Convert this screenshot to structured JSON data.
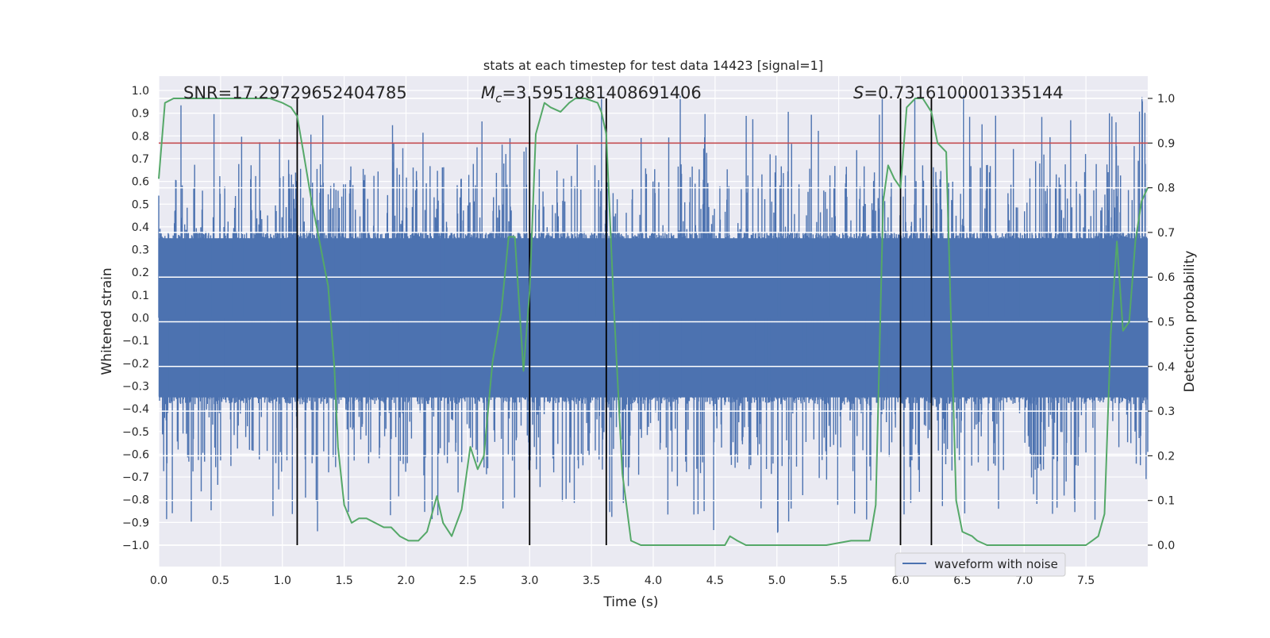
{
  "chart_data": {
    "type": "line",
    "title": "stats at each timestep for test data 14423 [signal=1]",
    "xlabel": "Time (s)",
    "ylabel_left": "Whitened strain",
    "ylabel_right": "Detection probability",
    "xlim": [
      0,
      8
    ],
    "ylim_left": [
      -1.05,
      1.05
    ],
    "ylim_right": [
      -0.05,
      1.04
    ],
    "x_ticks": [
      "0.0",
      "0.5",
      "1.0",
      "1.5",
      "2.0",
      "2.5",
      "3.0",
      "3.5",
      "4.0",
      "4.5",
      "5.0",
      "5.5",
      "6.0",
      "6.5",
      "7.0",
      "7.5"
    ],
    "y_ticks_left": [
      "1.0",
      "0.9",
      "0.8",
      "0.7",
      "0.6",
      "0.5",
      "0.4",
      "0.3",
      "0.2",
      "0.1",
      "0.0",
      "-0.1",
      "-0.2",
      "-0.3",
      "-0.4",
      "-0.5",
      "-0.6",
      "-0.7",
      "-0.8",
      "-0.9",
      "-1.0"
    ],
    "y_ticks_right": [
      "1.0",
      "0.9",
      "0.8",
      "0.7",
      "0.6",
      "0.5",
      "0.4",
      "0.3",
      "0.2",
      "0.1",
      "0.0"
    ],
    "annotations": {
      "snr": "SNR=17.29729652404785",
      "mc_prefix": "M",
      "mc_sub": "c",
      "mc_value": "=3.5951881408691406",
      "s_prefix": "S",
      "s_value": "=0.7316100001335144"
    },
    "legend": {
      "entries": [
        "waveform with noise"
      ],
      "placement": "lower-right"
    },
    "threshold": 0.9,
    "marker_times": [
      1.12,
      3.0,
      3.62,
      6.0,
      6.25
    ],
    "colors": {
      "waveform": "#4c72b0",
      "probability": "#55a868",
      "threshold": "#c44e52",
      "markers": "#000000",
      "background": "#eaeaf2",
      "grid": "#ffffff"
    },
    "series": [
      {
        "name": "waveform with noise",
        "kind": "noise",
        "x_range": [
          0,
          8
        ],
        "typical_amplitude": 0.38,
        "max_peak": 0.98,
        "min_trough": -1.0
      },
      {
        "axis": "right",
        "x": [
          0.0,
          0.05,
          0.12,
          0.25,
          0.5,
          0.75,
          0.9,
          1.0,
          1.07,
          1.12,
          1.17,
          1.23,
          1.3,
          1.37,
          1.42,
          1.45,
          1.5,
          1.56,
          1.62,
          1.68,
          1.75,
          1.82,
          1.88,
          1.95,
          2.02,
          2.1,
          2.17,
          2.25,
          2.3,
          2.37,
          2.45,
          2.52,
          2.58,
          2.63,
          2.7,
          2.77,
          2.83,
          2.88,
          2.95,
          3.0,
          3.05,
          3.12,
          3.17,
          3.25,
          3.32,
          3.37,
          3.45,
          3.55,
          3.58,
          3.62,
          3.68,
          3.75,
          3.82,
          3.9,
          4.0,
          4.2,
          4.4,
          4.5,
          4.58,
          4.62,
          4.68,
          4.75,
          4.85,
          5.0,
          5.2,
          5.4,
          5.6,
          5.7,
          5.75,
          5.8,
          5.86,
          5.9,
          5.95,
          6.0,
          6.05,
          6.12,
          6.18,
          6.25,
          6.3,
          6.37,
          6.45,
          6.5,
          6.58,
          6.62,
          6.7,
          6.8,
          7.0,
          7.2,
          7.4,
          7.5,
          7.55,
          7.6,
          7.65,
          7.7,
          7.75,
          7.8,
          7.85,
          7.9,
          7.95,
          8.0
        ],
        "values": [
          0.82,
          0.99,
          1.0,
          1.0,
          1.0,
          1.0,
          1.0,
          0.99,
          0.98,
          0.96,
          0.88,
          0.78,
          0.68,
          0.58,
          0.4,
          0.22,
          0.09,
          0.05,
          0.06,
          0.06,
          0.05,
          0.04,
          0.04,
          0.02,
          0.01,
          0.01,
          0.03,
          0.11,
          0.05,
          0.02,
          0.08,
          0.22,
          0.17,
          0.2,
          0.41,
          0.52,
          0.69,
          0.69,
          0.39,
          0.57,
          0.92,
          0.99,
          0.98,
          0.97,
          0.99,
          1.0,
          1.0,
          0.99,
          0.97,
          0.92,
          0.54,
          0.16,
          0.01,
          0.0,
          0.0,
          0.0,
          0.0,
          0.0,
          0.0,
          0.02,
          0.01,
          0.0,
          0.0,
          0.0,
          0.0,
          0.0,
          0.01,
          0.01,
          0.01,
          0.09,
          0.77,
          0.85,
          0.82,
          0.8,
          0.98,
          1.0,
          1.0,
          0.97,
          0.9,
          0.88,
          0.1,
          0.03,
          0.02,
          0.01,
          0.0,
          0.0,
          0.0,
          0.0,
          0.0,
          0.0,
          0.01,
          0.02,
          0.07,
          0.47,
          0.68,
          0.48,
          0.5,
          0.68,
          0.77,
          0.8
        ]
      }
    ]
  }
}
